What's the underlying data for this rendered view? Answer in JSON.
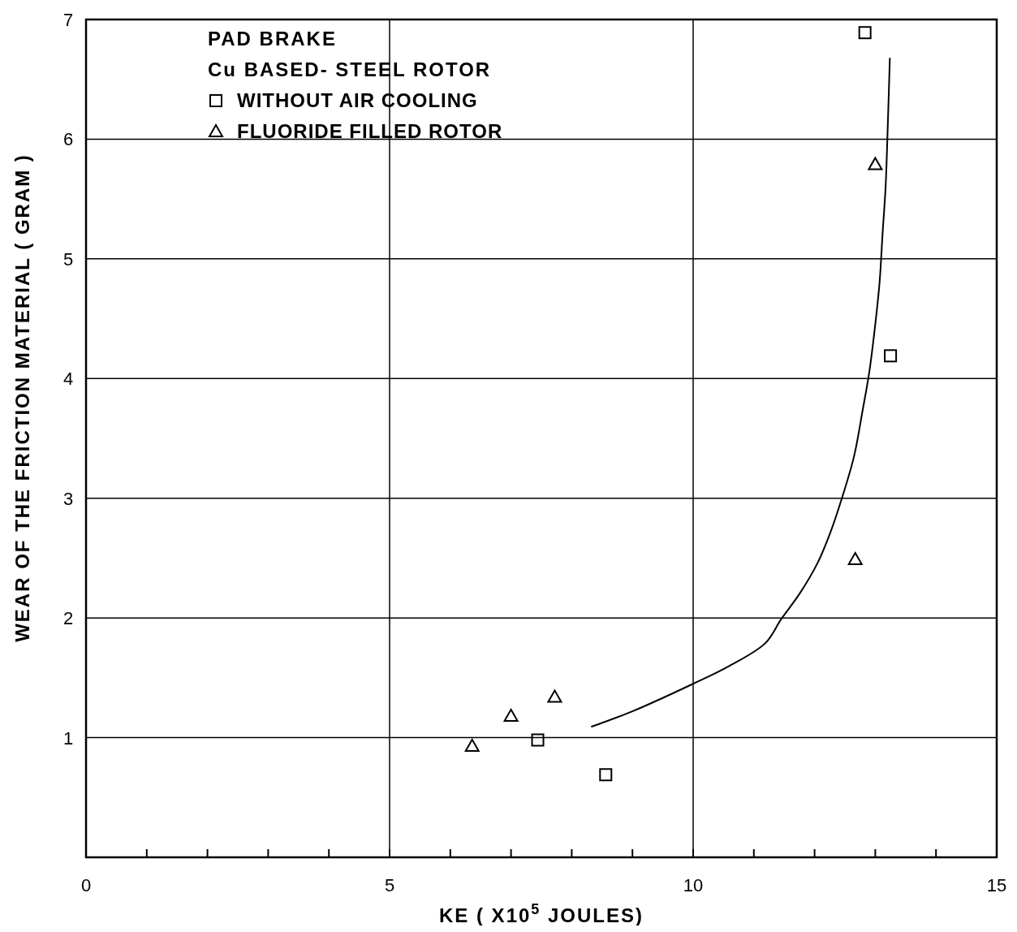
{
  "chart_data": {
    "type": "scatter",
    "xlabel": "KE ( X10$^{5}$ JOULES)",
    "ylabel": "WEAR OF THE FRICTION MATERIAL ( GRAM )",
    "legend_title": "PAD BRAKE",
    "annotations": [
      "Cu BASED- STEEL ROTOR"
    ],
    "xlim": [
      0,
      15
    ],
    "ylim": [
      0,
      7
    ],
    "xticks": [
      0,
      {
        "value": 1,
        "label": null
      },
      {
        "value": 2,
        "label": null
      },
      {
        "value": 3,
        "label": null
      },
      {
        "value": 4,
        "label": null
      },
      5,
      {
        "value": 6,
        "label": null
      },
      {
        "value": 7,
        "label": null
      },
      {
        "value": 8,
        "label": null
      },
      {
        "value": 9,
        "label": null
      },
      10,
      {
        "value": 11,
        "label": null
      },
      {
        "value": 12,
        "label": null
      },
      {
        "value": 13,
        "label": null
      },
      {
        "value": 14,
        "label": null
      },
      15
    ],
    "yticks": [
      1,
      2,
      3,
      4,
      5,
      6,
      7
    ],
    "grid": true,
    "legend": "top left",
    "line_style": "solid",
    "series": [
      {
        "name": "WITHOUT AIR COOLING",
        "color": "#000000",
        "marker": "square",
        "x": [
          12.83,
          13.25,
          7.44,
          8.56
        ],
        "values": [
          6.89,
          4.19,
          0.98,
          0.69
        ]
      },
      {
        "name": "FLUORIDE FILLED ROTOR",
        "color": "#000000",
        "marker": "triangle",
        "x": [
          13.0,
          12.67,
          6.36,
          7.0,
          7.72
        ],
        "values": [
          5.79,
          2.49,
          0.93,
          1.18,
          1.34
        ]
      },
      {
        "type": "line",
        "color": "#000000",
        "marker": "none",
        "x": [
          8.32,
          9.0,
          10.0,
          10.6,
          11.19,
          11.45,
          11.75,
          12.05,
          12.25,
          12.45,
          12.65,
          12.79,
          12.9,
          12.99,
          13.07,
          13.12,
          13.17,
          13.2,
          13.24
        ],
        "values": [
          1.09,
          1.22,
          1.45,
          1.6,
          1.79,
          1.99,
          2.2,
          2.46,
          2.7,
          3.0,
          3.35,
          3.73,
          4.05,
          4.41,
          4.8,
          5.21,
          5.6,
          6.02,
          6.68
        ]
      }
    ]
  }
}
